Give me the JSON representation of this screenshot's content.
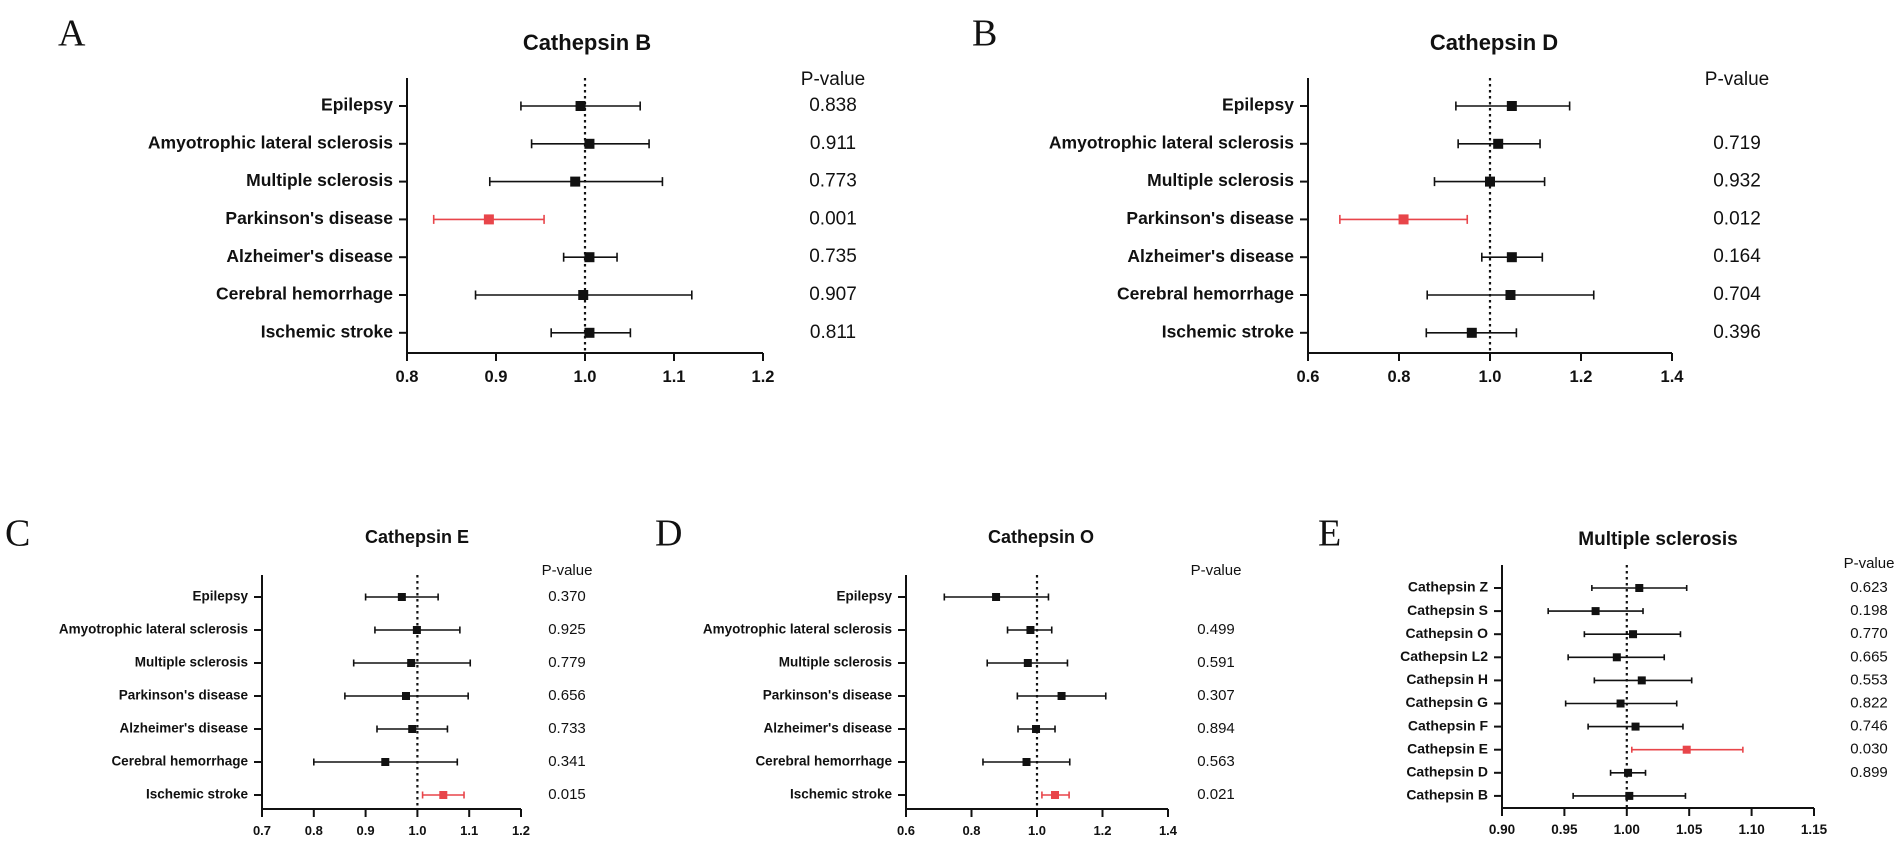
{
  "colors": {
    "default": "#111111",
    "significant": "#e8454a"
  },
  "chart_data": [
    {
      "type": "forest",
      "panel_label": "A",
      "title": "Cathepsin B",
      "pvalue_header": "P-value",
      "reference_line": 1.0,
      "xlim": [
        0.8,
        1.2
      ],
      "x_ticks": [
        "0.8",
        "0.9",
        "1.0",
        "1.1",
        "1.2"
      ],
      "rows": [
        {
          "label": "Epilepsy",
          "or": 0.995,
          "lo": 0.928,
          "hi": 1.062,
          "p": "0.838",
          "highlight": false
        },
        {
          "label": "Amyotrophic lateral sclerosis",
          "or": 1.005,
          "lo": 0.94,
          "hi": 1.072,
          "p": "0.911",
          "highlight": false
        },
        {
          "label": "Multiple sclerosis",
          "or": 0.989,
          "lo": 0.893,
          "hi": 1.087,
          "p": "0.773",
          "highlight": false
        },
        {
          "label": "Parkinson's disease",
          "or": 0.892,
          "lo": 0.83,
          "hi": 0.954,
          "p": "0.001",
          "highlight": true
        },
        {
          "label": "Alzheimer's disease",
          "or": 1.005,
          "lo": 0.976,
          "hi": 1.036,
          "p": "0.735",
          "highlight": false
        },
        {
          "label": "Cerebral hemorrhage",
          "or": 0.998,
          "lo": 0.877,
          "hi": 1.12,
          "p": "0.907",
          "highlight": false
        },
        {
          "label": "Ischemic stroke",
          "or": 1.005,
          "lo": 0.962,
          "hi": 1.051,
          "p": "0.811",
          "highlight": false
        }
      ]
    },
    {
      "type": "forest",
      "panel_label": "B",
      "title": "Cathepsin D",
      "pvalue_header": "P-value",
      "reference_line": 1.0,
      "xlim": [
        0.6,
        1.4
      ],
      "x_ticks": [
        "0.6",
        "0.8",
        "1.0",
        "1.2",
        "1.4"
      ],
      "rows": [
        {
          "label": "Epilepsy",
          "or": 1.048,
          "lo": 0.925,
          "hi": 1.175,
          "p": "",
          "highlight": false
        },
        {
          "label": "Amyotrophic lateral sclerosis",
          "or": 1.018,
          "lo": 0.93,
          "hi": 1.11,
          "p": "0.719",
          "highlight": false
        },
        {
          "label": "Multiple sclerosis",
          "or": 1.0,
          "lo": 0.878,
          "hi": 1.12,
          "p": "0.932",
          "highlight": false
        },
        {
          "label": "Parkinson's disease",
          "or": 0.81,
          "lo": 0.67,
          "hi": 0.95,
          "p": "0.012",
          "highlight": true
        },
        {
          "label": "Alzheimer's disease",
          "or": 1.048,
          "lo": 0.982,
          "hi": 1.115,
          "p": "0.164",
          "highlight": false
        },
        {
          "label": "Cerebral hemorrhage",
          "or": 1.045,
          "lo": 0.862,
          "hi": 1.228,
          "p": "0.704",
          "highlight": false
        },
        {
          "label": "Ischemic stroke",
          "or": 0.96,
          "lo": 0.86,
          "hi": 1.058,
          "p": "0.396",
          "highlight": false
        }
      ]
    },
    {
      "type": "forest",
      "panel_label": "C",
      "title": "Cathepsin E",
      "pvalue_header": "P-value",
      "reference_line": 1.0,
      "xlim": [
        0.7,
        1.2
      ],
      "x_ticks": [
        "0.7",
        "0.8",
        "0.9",
        "1.0",
        "1.1",
        "1.2"
      ],
      "rows": [
        {
          "label": "Epilepsy",
          "or": 0.97,
          "lo": 0.9,
          "hi": 1.04,
          "p": "0.370",
          "highlight": false
        },
        {
          "label": "Amyotrophic lateral sclerosis",
          "or": 0.999,
          "lo": 0.918,
          "hi": 1.082,
          "p": "0.925",
          "highlight": false
        },
        {
          "label": "Multiple sclerosis",
          "or": 0.988,
          "lo": 0.877,
          "hi": 1.102,
          "p": "0.779",
          "highlight": false
        },
        {
          "label": "Parkinson's disease",
          "or": 0.978,
          "lo": 0.86,
          "hi": 1.098,
          "p": "0.656",
          "highlight": false
        },
        {
          "label": "Alzheimer's disease",
          "or": 0.99,
          "lo": 0.922,
          "hi": 1.058,
          "p": "0.733",
          "highlight": false
        },
        {
          "label": "Cerebral hemorrhage",
          "or": 0.938,
          "lo": 0.8,
          "hi": 1.077,
          "p": "0.341",
          "highlight": false
        },
        {
          "label": "Ischemic stroke",
          "or": 1.05,
          "lo": 1.01,
          "hi": 1.09,
          "p": "0.015",
          "highlight": true
        }
      ]
    },
    {
      "type": "forest",
      "panel_label": "D",
      "title": "Cathepsin O",
      "pvalue_header": "P-value",
      "reference_line": 1.0,
      "xlim": [
        0.6,
        1.4
      ],
      "x_ticks": [
        "0.6",
        "0.8",
        "1.0",
        "1.2",
        "1.4"
      ],
      "rows": [
        {
          "label": "Epilepsy",
          "or": 0.875,
          "lo": 0.717,
          "hi": 1.035,
          "p": "",
          "highlight": false
        },
        {
          "label": "Amyotrophic lateral sclerosis",
          "or": 0.98,
          "lo": 0.91,
          "hi": 1.045,
          "p": "0.499",
          "highlight": false
        },
        {
          "label": "Multiple sclerosis",
          "or": 0.972,
          "lo": 0.848,
          "hi": 1.093,
          "p": "0.591",
          "highlight": false
        },
        {
          "label": "Parkinson's disease",
          "or": 1.075,
          "lo": 0.94,
          "hi": 1.21,
          "p": "0.307",
          "highlight": false
        },
        {
          "label": "Alzheimer's disease",
          "or": 0.997,
          "lo": 0.942,
          "hi": 1.055,
          "p": "0.894",
          "highlight": false
        },
        {
          "label": "Cerebral hemorrhage",
          "or": 0.968,
          "lo": 0.835,
          "hi": 1.1,
          "p": "0.563",
          "highlight": false
        },
        {
          "label": "Ischemic stroke",
          "or": 1.055,
          "lo": 1.015,
          "hi": 1.098,
          "p": "0.021",
          "highlight": true
        }
      ]
    },
    {
      "type": "forest",
      "panel_label": "E",
      "title": "Multiple sclerosis",
      "pvalue_header": "P-value",
      "reference_line": 1.0,
      "xlim": [
        0.9,
        1.15
      ],
      "x_ticks": [
        "0.90",
        "0.95",
        "1.00",
        "1.05",
        "1.10",
        "1.15"
      ],
      "rows": [
        {
          "label": "Cathepsin Z",
          "or": 1.01,
          "lo": 0.972,
          "hi": 1.048,
          "p": "0.623",
          "highlight": false
        },
        {
          "label": "Cathepsin S",
          "or": 0.975,
          "lo": 0.937,
          "hi": 1.013,
          "p": "0.198",
          "highlight": false
        },
        {
          "label": "Cathepsin O",
          "or": 1.005,
          "lo": 0.966,
          "hi": 1.043,
          "p": "0.770",
          "highlight": false
        },
        {
          "label": "Cathepsin L2",
          "or": 0.992,
          "lo": 0.953,
          "hi": 1.03,
          "p": "0.665",
          "highlight": false
        },
        {
          "label": "Cathepsin H",
          "or": 1.012,
          "lo": 0.974,
          "hi": 1.052,
          "p": "0.553",
          "highlight": false
        },
        {
          "label": "Cathepsin G",
          "or": 0.995,
          "lo": 0.951,
          "hi": 1.04,
          "p": "0.822",
          "highlight": false
        },
        {
          "label": "Cathepsin F",
          "or": 1.007,
          "lo": 0.969,
          "hi": 1.045,
          "p": "0.746",
          "highlight": false
        },
        {
          "label": "Cathepsin E",
          "or": 1.048,
          "lo": 1.004,
          "hi": 1.093,
          "p": "0.030",
          "highlight": true
        },
        {
          "label": "Cathepsin D",
          "or": 1.001,
          "lo": 0.987,
          "hi": 1.015,
          "p": "0.899",
          "highlight": false
        },
        {
          "label": "Cathepsin B",
          "or": 1.002,
          "lo": 0.957,
          "hi": 1.047,
          "p": "",
          "highlight": false
        }
      ]
    }
  ]
}
